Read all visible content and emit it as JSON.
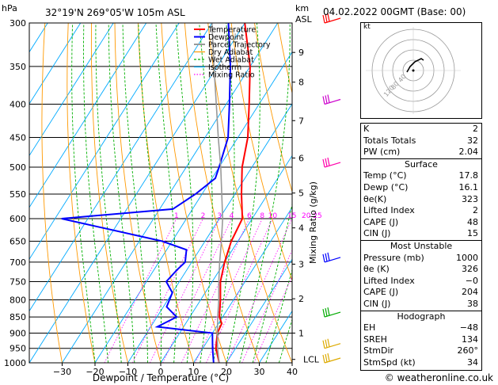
{
  "header": {
    "location": "32°19'N  269°05'W  105m  ASL",
    "datetime": "04.02.2022  00GMT  (Base: 00)",
    "hpa_label": "hPa",
    "km_label": "km",
    "asl_label": "ASL"
  },
  "chart_data": {
    "type": "line",
    "title": "",
    "xlabel": "Dewpoint / Temperature (°C)",
    "ylabel_right": "Mixing Ratio (g/kg)",
    "y_scale": "log",
    "pressure_levels": [
      300,
      350,
      400,
      450,
      500,
      550,
      600,
      650,
      700,
      750,
      800,
      850,
      900,
      950,
      1000
    ],
    "x_ticks": [
      -30,
      -20,
      -10,
      0,
      10,
      20,
      30,
      40
    ],
    "xlim": [
      -40,
      40
    ],
    "ylim_hpa": [
      1000,
      300
    ],
    "km_ticks": [
      {
        "label": "9",
        "p": 333
      },
      {
        "label": "8",
        "p": 370
      },
      {
        "label": "7",
        "p": 424
      },
      {
        "label": "6",
        "p": 484
      },
      {
        "label": "5",
        "p": 548
      },
      {
        "label": "4",
        "p": 620
      },
      {
        "label": "3",
        "p": 705
      },
      {
        "label": "2",
        "p": 797
      },
      {
        "label": "1",
        "p": 900
      },
      {
        "label": "LCL",
        "p": 988
      }
    ],
    "mixing_ratio_labels": [
      "1",
      "2",
      "3",
      "4",
      "6",
      "8",
      "10",
      "15",
      "20",
      "25"
    ],
    "mixing_ratio_values": [
      1,
      2,
      3,
      4,
      6,
      8,
      10,
      15,
      20,
      25
    ],
    "legend": [
      "Temperature",
      "Dewpoint",
      "Parcel Trajectory",
      "Dry Adiabat",
      "Wet Adiabat",
      "Isotherm",
      "Mixing Ratio"
    ],
    "series": [
      {
        "name": "Temperature",
        "points": [
          [
            1000,
            17.8
          ],
          [
            950,
            14
          ],
          [
            900,
            11.5
          ],
          [
            870,
            11
          ],
          [
            850,
            9
          ],
          [
            800,
            6
          ],
          [
            750,
            2.5
          ],
          [
            700,
            0
          ],
          [
            650,
            -2
          ],
          [
            600,
            -3
          ],
          [
            550,
            -8
          ],
          [
            500,
            -13
          ],
          [
            450,
            -17
          ],
          [
            400,
            -23
          ],
          [
            350,
            -30
          ],
          [
            300,
            -40
          ]
        ]
      },
      {
        "name": "Dewpoint",
        "points": [
          [
            1000,
            16.1
          ],
          [
            950,
            13
          ],
          [
            900,
            10
          ],
          [
            880,
            -8
          ],
          [
            850,
            -4
          ],
          [
            820,
            -9
          ],
          [
            780,
            -10
          ],
          [
            750,
            -14
          ],
          [
            720,
            -13
          ],
          [
            700,
            -12
          ],
          [
            670,
            -14
          ],
          [
            650,
            -23
          ],
          [
            600,
            -58
          ],
          [
            580,
            -26
          ],
          [
            550,
            -22
          ],
          [
            520,
            -19
          ],
          [
            500,
            -20
          ],
          [
            450,
            -23
          ],
          [
            400,
            -29
          ],
          [
            350,
            -36
          ],
          [
            300,
            -45
          ]
        ]
      },
      {
        "name": "Parcel Trajectory",
        "points": [
          [
            1000,
            17.8
          ],
          [
            950,
            14.5
          ],
          [
            900,
            11.5
          ],
          [
            850,
            8.5
          ],
          [
            800,
            5.5
          ],
          [
            750,
            2
          ],
          [
            700,
            -1.5
          ],
          [
            650,
            -5
          ],
          [
            600,
            -9
          ],
          [
            550,
            -14
          ],
          [
            500,
            -19.5
          ],
          [
            450,
            -26
          ],
          [
            400,
            -33
          ],
          [
            350,
            -41
          ],
          [
            300,
            -50
          ]
        ]
      }
    ],
    "colors": {
      "temperature": "#ff0000",
      "dewpoint": "#0000ff",
      "parcel": "#999999",
      "dry_adiabat": "#ff9900",
      "wet_adiabat": "#00b000",
      "isotherm": "#00aaff",
      "mixing_ratio": "#ff00ff"
    }
  },
  "hodograph": {
    "label": "kt",
    "ring_labels": [
      "120",
      "80",
      "40"
    ]
  },
  "indices": [
    {
      "label": "K",
      "value": "2"
    },
    {
      "label": "Totals Totals",
      "value": "32"
    },
    {
      "label": "PW (cm)",
      "value": "2.04"
    }
  ],
  "surface": {
    "title": "Surface",
    "rows": [
      {
        "label": "Temp (°C)",
        "value": "17.8"
      },
      {
        "label": "Dewp (°C)",
        "value": "16.1"
      },
      {
        "label": "θe(K)",
        "value": "323"
      },
      {
        "label": "Lifted Index",
        "value": "2"
      },
      {
        "label": "CAPE (J)",
        "value": "48"
      },
      {
        "label": "CIN (J)",
        "value": "15"
      }
    ]
  },
  "most_unstable": {
    "title": "Most Unstable",
    "rows": [
      {
        "label": "Pressure (mb)",
        "value": "1000"
      },
      {
        "label": "θe (K)",
        "value": "326"
      },
      {
        "label": "Lifted Index",
        "value": "−0"
      },
      {
        "label": "CAPE (J)",
        "value": "204"
      },
      {
        "label": "CIN (J)",
        "value": "38"
      }
    ]
  },
  "hodograph_table": {
    "title": "Hodograph",
    "rows": [
      {
        "label": "EH",
        "value": "−48"
      },
      {
        "label": "SREH",
        "value": "134"
      },
      {
        "label": "StmDir",
        "value": "260°"
      },
      {
        "label": "StmSpd (kt)",
        "value": "34"
      }
    ]
  },
  "copyright": "© weatheronline.co.uk"
}
